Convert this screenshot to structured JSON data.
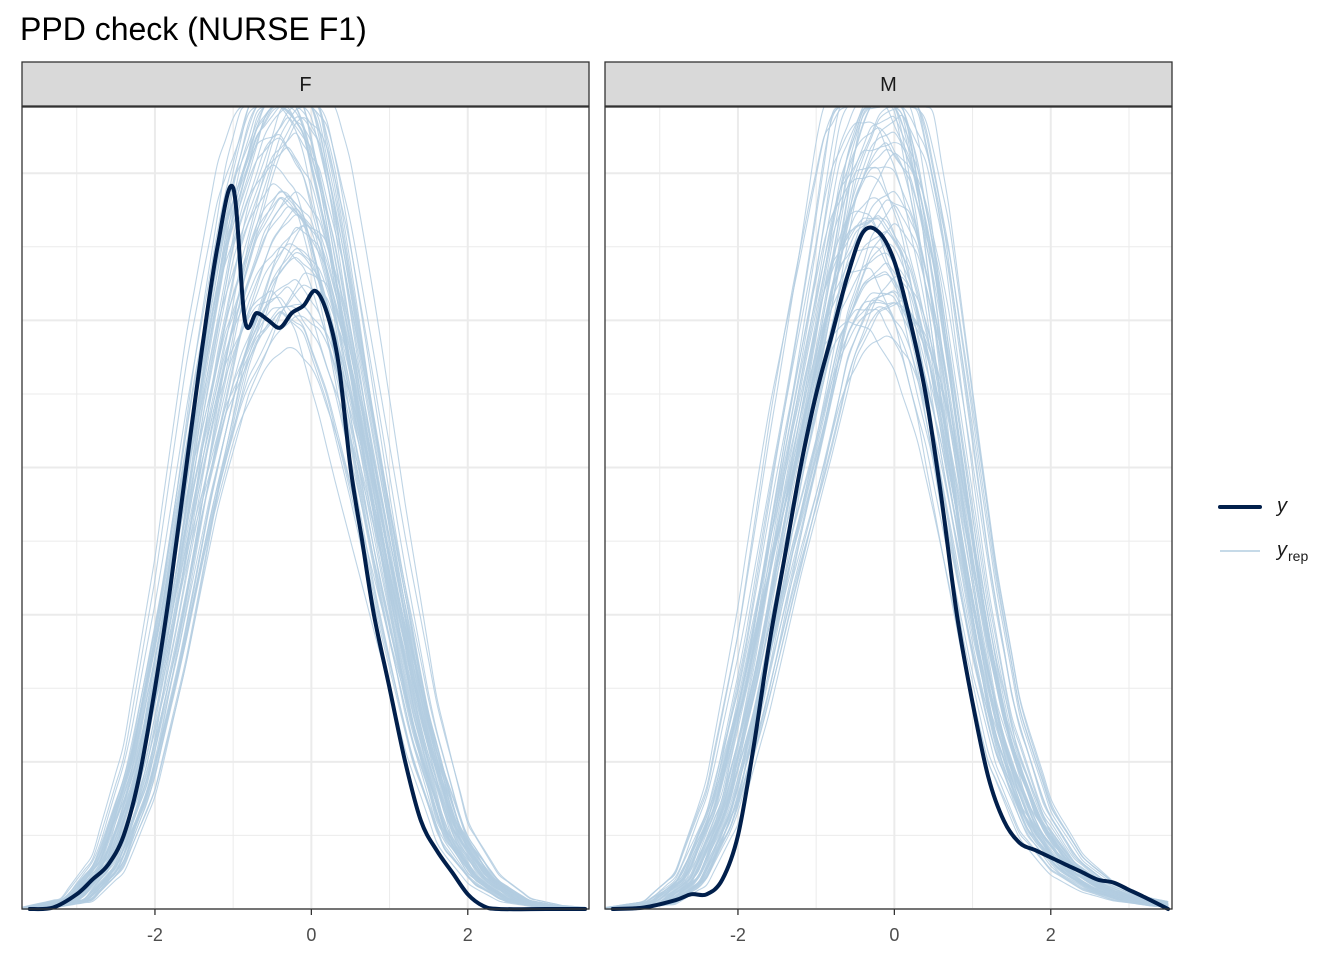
{
  "chart_data": {
    "type": "line",
    "title": "PPD check (NURSE F1)",
    "xlabel": "",
    "ylabel": "",
    "xlim": [
      -3.7,
      3.55
    ],
    "ylim": [
      0,
      0.545
    ],
    "x_ticks": [
      -2,
      0,
      2
    ],
    "x_tick_labels": [
      "-2",
      "0",
      "2"
    ],
    "grid": true,
    "legend_position": "right",
    "colors": {
      "y": "#011f4b",
      "yrep": "#b3cde0",
      "strip_bg": "#d9d9d9",
      "grid": "#ebebeb"
    },
    "legend": [
      {
        "key": "y",
        "label": "y",
        "subscript": ""
      },
      {
        "key": "yrep",
        "label": "y",
        "subscript": "rep"
      }
    ],
    "panels": [
      {
        "strip": "F",
        "observed": {
          "x": [
            -3.6,
            -3.3,
            -3.0,
            -2.8,
            -2.6,
            -2.4,
            -2.2,
            -2.0,
            -1.8,
            -1.6,
            -1.4,
            -1.2,
            -1.0,
            -0.85,
            -0.7,
            -0.55,
            -0.4,
            -0.25,
            -0.1,
            0.05,
            0.2,
            0.35,
            0.5,
            0.65,
            0.8,
            1.0,
            1.2,
            1.4,
            1.6,
            1.8,
            2.0,
            2.2,
            2.4,
            3.0,
            3.5
          ],
          "y": [
            0.0,
            0.001,
            0.01,
            0.02,
            0.03,
            0.05,
            0.09,
            0.15,
            0.22,
            0.3,
            0.38,
            0.45,
            0.49,
            0.4,
            0.405,
            0.4,
            0.395,
            0.405,
            0.41,
            0.42,
            0.405,
            0.37,
            0.3,
            0.25,
            0.2,
            0.15,
            0.1,
            0.06,
            0.04,
            0.025,
            0.01,
            0.002,
            0.0,
            0.0,
            0.0
          ]
        },
        "replicate_center": [
          [
            -3.6,
            0.0
          ],
          [
            -3.0,
            0.006
          ],
          [
            -2.6,
            0.03
          ],
          [
            -2.2,
            0.09
          ],
          [
            -1.8,
            0.19
          ],
          [
            -1.4,
            0.31
          ],
          [
            -1.0,
            0.41
          ],
          [
            -0.6,
            0.47
          ],
          [
            -0.3,
            0.49
          ],
          [
            0.0,
            0.47
          ],
          [
            0.3,
            0.41
          ],
          [
            0.6,
            0.33
          ],
          [
            1.0,
            0.22
          ],
          [
            1.4,
            0.12
          ],
          [
            1.8,
            0.05
          ],
          [
            2.2,
            0.02
          ],
          [
            2.6,
            0.006
          ],
          [
            3.0,
            0.002
          ],
          [
            3.55,
            0.0
          ]
        ]
      },
      {
        "strip": "M",
        "observed": {
          "x": [
            -3.6,
            -3.2,
            -2.8,
            -2.6,
            -2.4,
            -2.2,
            -2.0,
            -1.8,
            -1.6,
            -1.4,
            -1.2,
            -1.0,
            -0.8,
            -0.6,
            -0.4,
            -0.2,
            0.0,
            0.2,
            0.4,
            0.6,
            0.8,
            1.0,
            1.2,
            1.4,
            1.6,
            1.8,
            2.0,
            2.2,
            2.4,
            2.6,
            2.8,
            3.0,
            3.2,
            3.5
          ],
          "y": [
            0.0,
            0.001,
            0.006,
            0.01,
            0.01,
            0.02,
            0.05,
            0.11,
            0.18,
            0.24,
            0.3,
            0.35,
            0.39,
            0.43,
            0.46,
            0.46,
            0.44,
            0.4,
            0.35,
            0.28,
            0.2,
            0.14,
            0.09,
            0.06,
            0.045,
            0.04,
            0.035,
            0.03,
            0.025,
            0.02,
            0.018,
            0.013,
            0.008,
            0.0
          ]
        },
        "replicate_center": [
          [
            -3.6,
            0.0
          ],
          [
            -3.0,
            0.004
          ],
          [
            -2.6,
            0.02
          ],
          [
            -2.2,
            0.07
          ],
          [
            -1.8,
            0.16
          ],
          [
            -1.4,
            0.27
          ],
          [
            -1.0,
            0.37
          ],
          [
            -0.7,
            0.45
          ],
          [
            -0.4,
            0.49
          ],
          [
            -0.1,
            0.5
          ],
          [
            0.2,
            0.47
          ],
          [
            0.5,
            0.4
          ],
          [
            0.8,
            0.3
          ],
          [
            1.1,
            0.2
          ],
          [
            1.4,
            0.12
          ],
          [
            1.8,
            0.06
          ],
          [
            2.2,
            0.03
          ],
          [
            2.6,
            0.015
          ],
          [
            3.0,
            0.007
          ],
          [
            3.55,
            0.002
          ]
        ]
      }
    ]
  }
}
